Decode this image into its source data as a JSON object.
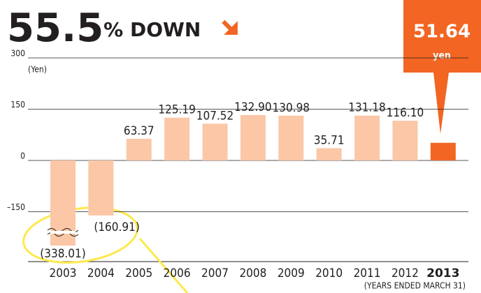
{
  "chart_data": {
    "type": "bar",
    "title": "55.5% DOWN",
    "y_axis_label": "(Yen)",
    "footnote": "(YEARS ENDED MARCH 31)",
    "callout_unit": "yen",
    "categories": [
      "2003",
      "2004",
      "2005",
      "2006",
      "2007",
      "2008",
      "2009",
      "2010",
      "2011",
      "2012",
      "2013"
    ],
    "values": [
      -338.01,
      -160.91,
      63.37,
      125.19,
      107.52,
      132.9,
      130.98,
      35.71,
      131.18,
      116.1,
      51.64
    ],
    "value_labels": [
      "(338.01)",
      "(160.91)",
      "63.37",
      "125.19",
      "107.52",
      "132.90",
      "130.98",
      "35.71",
      "131.18",
      "116.10",
      "51.64"
    ],
    "colors": [
      "#fbc7a6",
      "#fbc7a6",
      "#fbc7a6",
      "#fbc7a6",
      "#fbc7a6",
      "#fbc7a6",
      "#fbc7a6",
      "#fbc7a6",
      "#fbc7a6",
      "#fbc7a6",
      "#f26522"
    ],
    "ylim": [
      -300,
      300
    ],
    "yticks": [
      300,
      150,
      0,
      {
        "value": -150,
        "label": "–150"
      }
    ],
    "grid": true
  }
}
